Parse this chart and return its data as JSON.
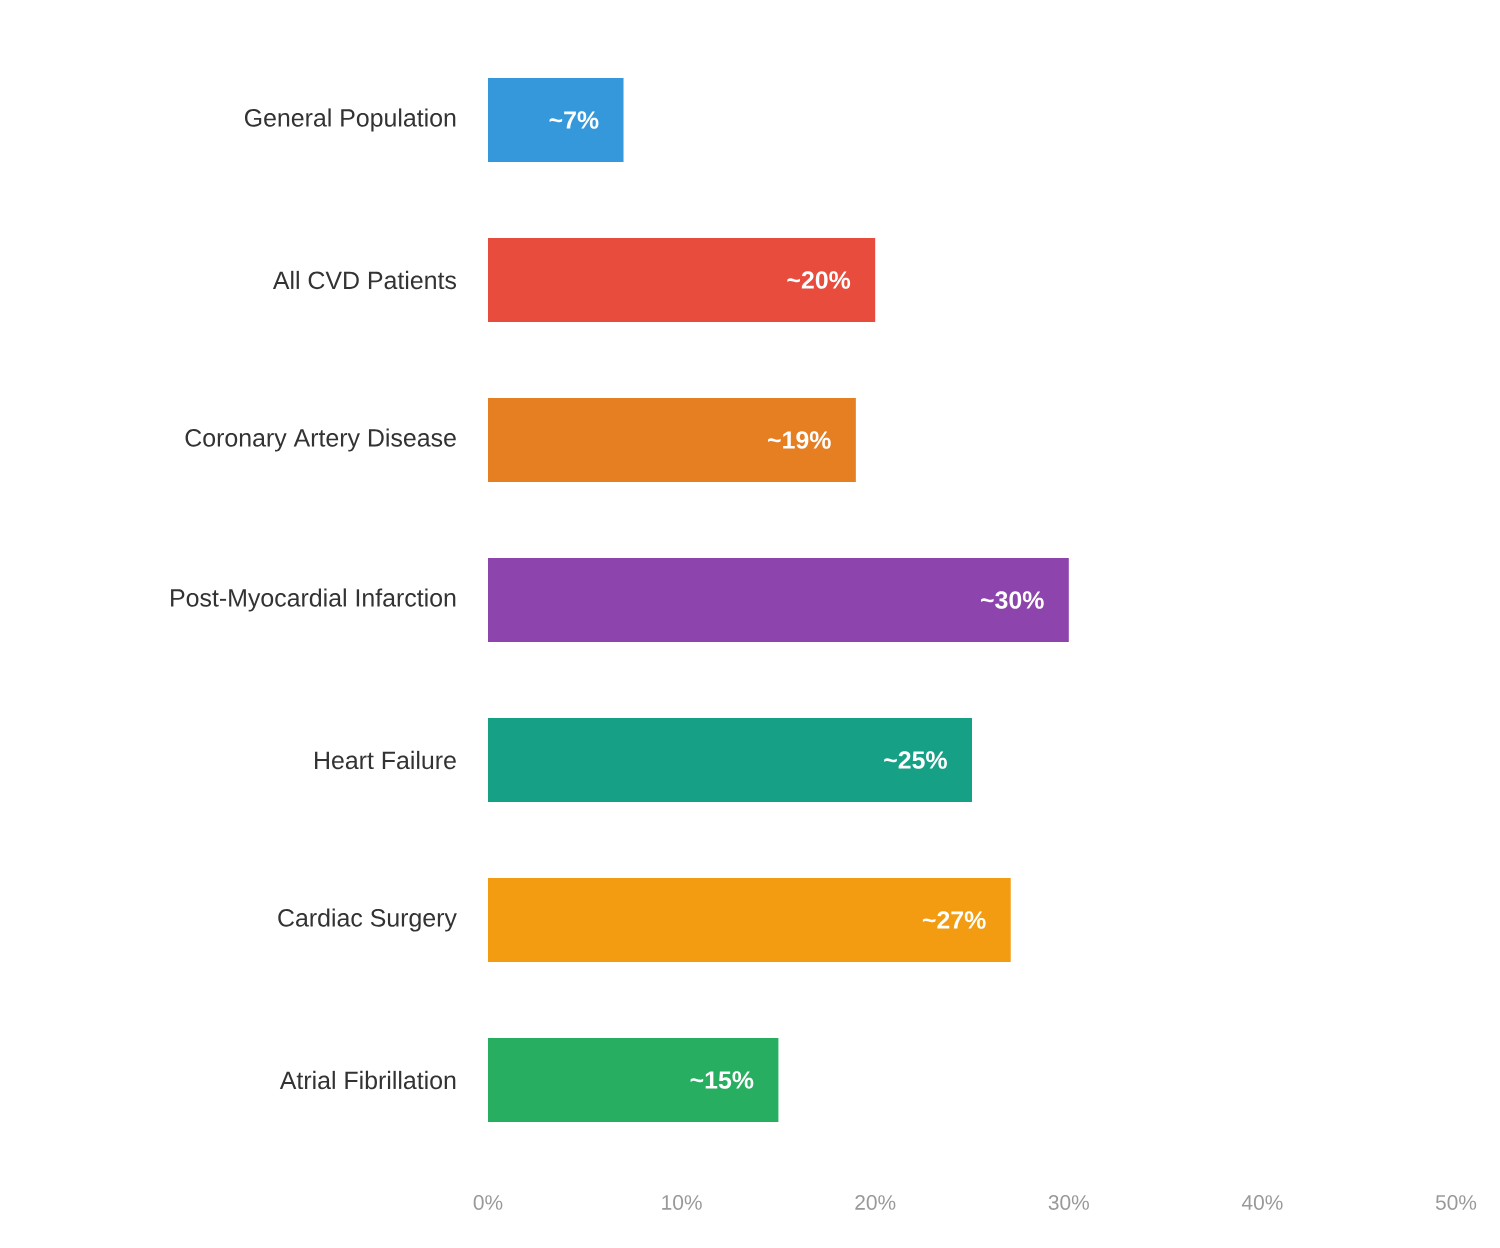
{
  "chart_data": {
    "type": "bar",
    "orientation": "horizontal",
    "categories": [
      "General Population",
      "All CVD Patients",
      "Coronary Artery Disease",
      "Post-Myocardial Infarction",
      "Heart Failure",
      "Cardiac Surgery",
      "Atrial Fibrillation"
    ],
    "values": [
      7,
      20,
      19,
      30,
      25,
      27,
      15
    ],
    "value_labels": [
      "~7%",
      "~20%",
      "~19%",
      "~30%",
      "~25%",
      "~27%",
      "~15%"
    ],
    "colors": [
      "#3498db",
      "#e74c3c",
      "#e67e22",
      "#8e44ad",
      "#16a085",
      "#f39c12",
      "#27ae60"
    ],
    "xlim": [
      0,
      50
    ],
    "xticks": [
      {
        "value": 0,
        "label": "0%"
      },
      {
        "value": 10,
        "label": "10%"
      },
      {
        "value": 20,
        "label": "20%"
      },
      {
        "value": 30,
        "label": "30%"
      },
      {
        "value": 40,
        "label": "40%"
      },
      {
        "value": 50,
        "label": "50%"
      }
    ]
  }
}
